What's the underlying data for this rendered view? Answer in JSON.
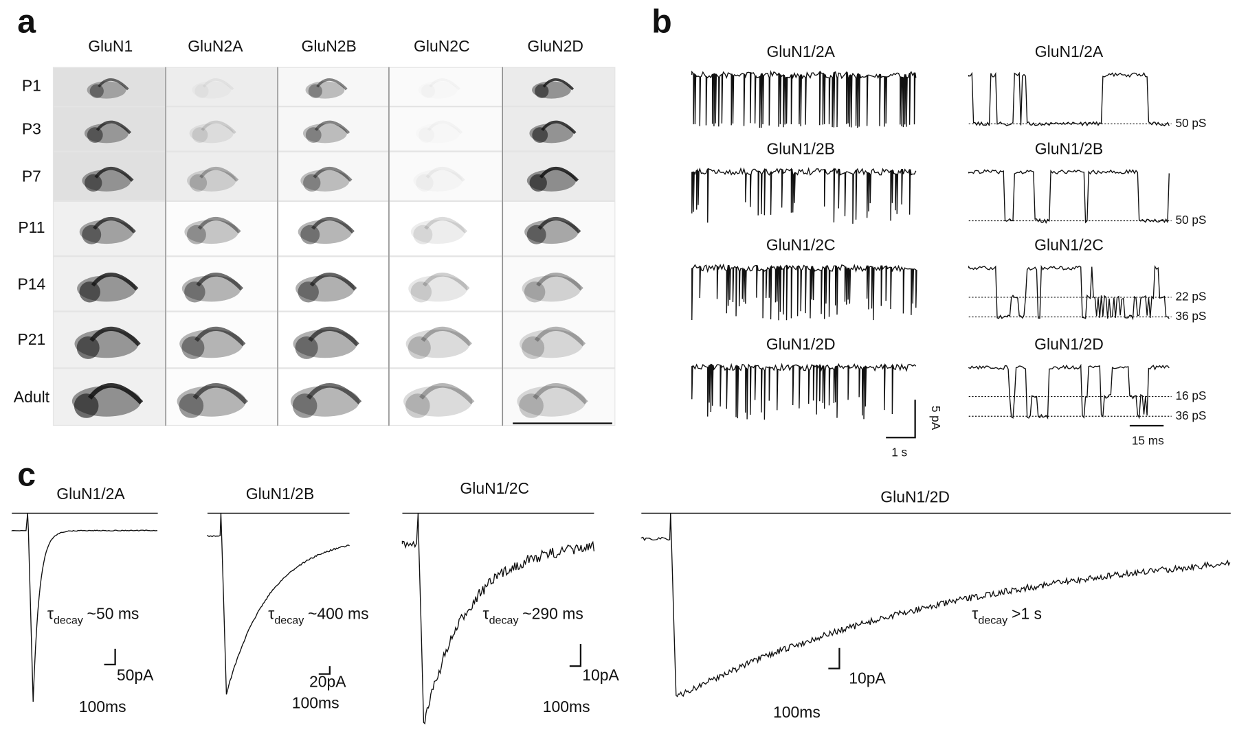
{
  "panel_a": {
    "label": "a",
    "columns": [
      "GluN1",
      "GluN2A",
      "GluN2B",
      "GluN2C",
      "GluN2D"
    ],
    "rows": [
      "P1",
      "P3",
      "P7",
      "P11",
      "P14",
      "P21",
      "Adult"
    ]
  },
  "panel_b": {
    "label": "b",
    "left_titles": [
      "GluN1/2A",
      "GluN1/2B",
      "GluN1/2C",
      "GluN1/2D"
    ],
    "right_titles": [
      "GluN1/2A",
      "GluN1/2B",
      "GluN1/2C",
      "GluN1/2D"
    ],
    "conductance_labels": [
      [
        "50 pS"
      ],
      [
        "50 pS"
      ],
      [
        "22 pS",
        "36 pS"
      ],
      [
        "16 pS",
        "36 pS"
      ]
    ],
    "scale_y": "5 pA",
    "scale_x_left": "1 s",
    "scale_x_right": "15 ms"
  },
  "panel_c": {
    "label": "c",
    "traces": [
      {
        "title": "GluN1/2A",
        "tau_symbol": "τ",
        "tau_subscript": "decay",
        "tau_value": "~50 ms",
        "scale_y": "50pA",
        "scale_x": "100ms"
      },
      {
        "title": "GluN1/2B",
        "tau_symbol": "τ",
        "tau_subscript": "decay",
        "tau_value": "~400 ms",
        "scale_y": "20pA",
        "scale_x": "100ms"
      },
      {
        "title": "GluN1/2C",
        "tau_symbol": "τ",
        "tau_subscript": "decay",
        "tau_value": "~290 ms",
        "scale_y": "10pA",
        "scale_x": "100ms"
      },
      {
        "title": "GluN1/2D",
        "tau_symbol": "τ",
        "tau_subscript": "decay",
        "tau_value": ">1 s",
        "scale_y": "10pA",
        "scale_x": "100ms"
      }
    ]
  }
}
